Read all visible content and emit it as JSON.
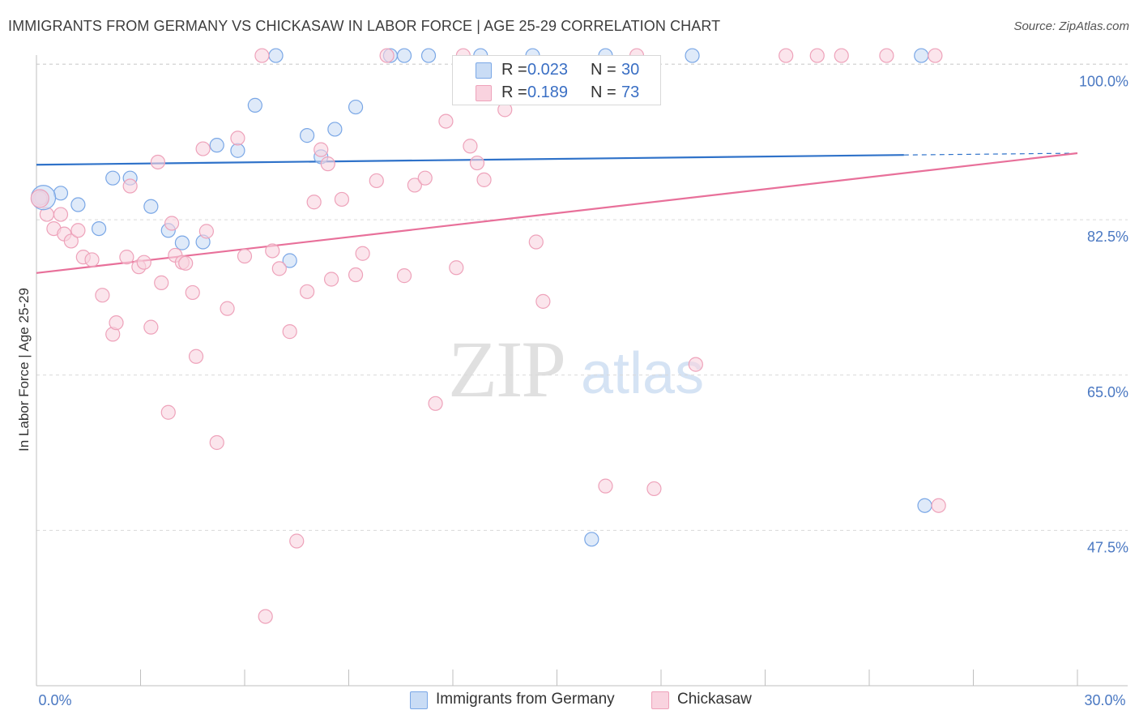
{
  "title": "IMMIGRANTS FROM GERMANY VS CHICKASAW IN LABOR FORCE | AGE 25-29 CORRELATION CHART",
  "source": "Source: ZipAtlas.com",
  "watermark": {
    "zip": "ZIP",
    "atlas": "atlas"
  },
  "legend_top": {
    "rows": [
      {
        "r_label": "R =",
        "r_value": "0.023",
        "n_label": "N =",
        "n_value": "30"
      },
      {
        "r_label": "R =",
        "r_value": "0.189",
        "n_label": "N =",
        "n_value": "73"
      }
    ]
  },
  "chart_data": {
    "type": "scatter",
    "title": "IMMIGRANTS FROM GERMANY VS CHICKASAW IN LABOR FORCE | AGE 25-29 CORRELATION CHART",
    "xlabel": "",
    "ylabel": "In Labor Force | Age 25-29",
    "xlim": [
      0,
      30
    ],
    "ylim": [
      30,
      101.6
    ],
    "x_tick_labels": [
      "0.0%",
      "30.0%"
    ],
    "y_ticks": [
      {
        "value": 100,
        "label": "100.0%"
      },
      {
        "value": 82.5,
        "label": "82.5%"
      },
      {
        "value": 65,
        "label": "65.0%"
      },
      {
        "value": 47.5,
        "label": "47.5%"
      }
    ],
    "series": [
      {
        "name": "Immigrants from Germany",
        "color": "#7aa7e6",
        "fill": "#c9dcf5",
        "line_color": "#2f72c9",
        "trend": {
          "x1": 0,
          "y1": 88.7,
          "x2": 25,
          "y2": 89.8,
          "x_dash_end": 30,
          "y_dash_end": 90.0
        },
        "points": [
          [
            0.15,
            85.0
          ],
          [
            0.7,
            85.5
          ],
          [
            1.2,
            84.2
          ],
          [
            1.8,
            81.5
          ],
          [
            2.2,
            87.2
          ],
          [
            2.7,
            87.2
          ],
          [
            3.3,
            84.0
          ],
          [
            3.8,
            81.3
          ],
          [
            4.2,
            79.9
          ],
          [
            4.8,
            80.0
          ],
          [
            5.2,
            90.9
          ],
          [
            5.8,
            90.3
          ],
          [
            6.3,
            95.4
          ],
          [
            6.9,
            101.0
          ],
          [
            7.3,
            77.9
          ],
          [
            7.8,
            92.0
          ],
          [
            8.2,
            89.6
          ],
          [
            8.6,
            92.7
          ],
          [
            9.2,
            95.2
          ],
          [
            10.2,
            101.0
          ],
          [
            10.6,
            101.0
          ],
          [
            11.3,
            101.0
          ],
          [
            12.8,
            101.0
          ],
          [
            14.3,
            101.0
          ],
          [
            16.0,
            46.5
          ],
          [
            16.4,
            101.0
          ],
          [
            18.9,
            101.0
          ],
          [
            25.5,
            101.0
          ],
          [
            25.6,
            50.3
          ]
        ]
      },
      {
        "name": "Chickasaw",
        "color": "#eea2ba",
        "fill": "#f9d3df",
        "line_color": "#e8709a",
        "trend": {
          "x1": 0,
          "y1": 76.5,
          "x2": 30,
          "y2": 90.0
        },
        "points": [
          [
            0.1,
            84.9
          ],
          [
            0.3,
            83.1
          ],
          [
            0.5,
            81.5
          ],
          [
            0.7,
            83.1
          ],
          [
            0.8,
            80.9
          ],
          [
            1.0,
            80.1
          ],
          [
            1.2,
            81.3
          ],
          [
            1.35,
            78.3
          ],
          [
            1.6,
            78.0
          ],
          [
            1.9,
            74.0
          ],
          [
            2.2,
            69.6
          ],
          [
            2.3,
            70.9
          ],
          [
            2.6,
            78.3
          ],
          [
            2.7,
            86.3
          ],
          [
            2.95,
            77.2
          ],
          [
            3.1,
            77.7
          ],
          [
            3.3,
            70.4
          ],
          [
            3.5,
            89.0
          ],
          [
            3.6,
            75.4
          ],
          [
            3.8,
            60.8
          ],
          [
            3.9,
            82.1
          ],
          [
            4.0,
            78.5
          ],
          [
            4.2,
            77.7
          ],
          [
            4.3,
            77.6
          ],
          [
            4.5,
            74.3
          ],
          [
            4.6,
            67.1
          ],
          [
            4.8,
            90.5
          ],
          [
            4.9,
            81.2
          ],
          [
            5.2,
            57.4
          ],
          [
            5.5,
            72.5
          ],
          [
            5.8,
            91.7
          ],
          [
            6.0,
            78.4
          ],
          [
            6.6,
            37.8
          ],
          [
            6.5,
            101.0
          ],
          [
            6.8,
            79.0
          ],
          [
            7.0,
            77.0
          ],
          [
            7.3,
            69.9
          ],
          [
            7.5,
            46.3
          ],
          [
            7.8,
            74.4
          ],
          [
            8.0,
            84.5
          ],
          [
            8.2,
            90.4
          ],
          [
            8.4,
            88.8
          ],
          [
            8.5,
            75.8
          ],
          [
            8.8,
            84.8
          ],
          [
            9.2,
            76.3
          ],
          [
            9.4,
            78.7
          ],
          [
            9.8,
            86.9
          ],
          [
            10.1,
            101.0
          ],
          [
            10.6,
            76.2
          ],
          [
            10.9,
            86.4
          ],
          [
            11.2,
            87.2
          ],
          [
            11.5,
            61.8
          ],
          [
            11.8,
            93.6
          ],
          [
            12.1,
            77.1
          ],
          [
            12.3,
            101.0
          ],
          [
            12.5,
            90.8
          ],
          [
            12.7,
            88.9
          ],
          [
            12.9,
            87.0
          ],
          [
            13.5,
            94.9
          ],
          [
            14.4,
            80.0
          ],
          [
            14.6,
            73.3
          ],
          [
            16.4,
            52.5
          ],
          [
            17.3,
            101.0
          ],
          [
            17.8,
            52.2
          ],
          [
            19.0,
            66.2
          ],
          [
            21.6,
            101.0
          ],
          [
            22.5,
            101.0
          ],
          [
            23.2,
            101.0
          ],
          [
            24.5,
            101.0
          ],
          [
            25.9,
            101.0
          ],
          [
            26.0,
            50.3
          ]
        ]
      }
    ]
  },
  "legend_bottom": [
    {
      "label": "Immigrants from Germany"
    },
    {
      "label": "Chickasaw"
    }
  ]
}
